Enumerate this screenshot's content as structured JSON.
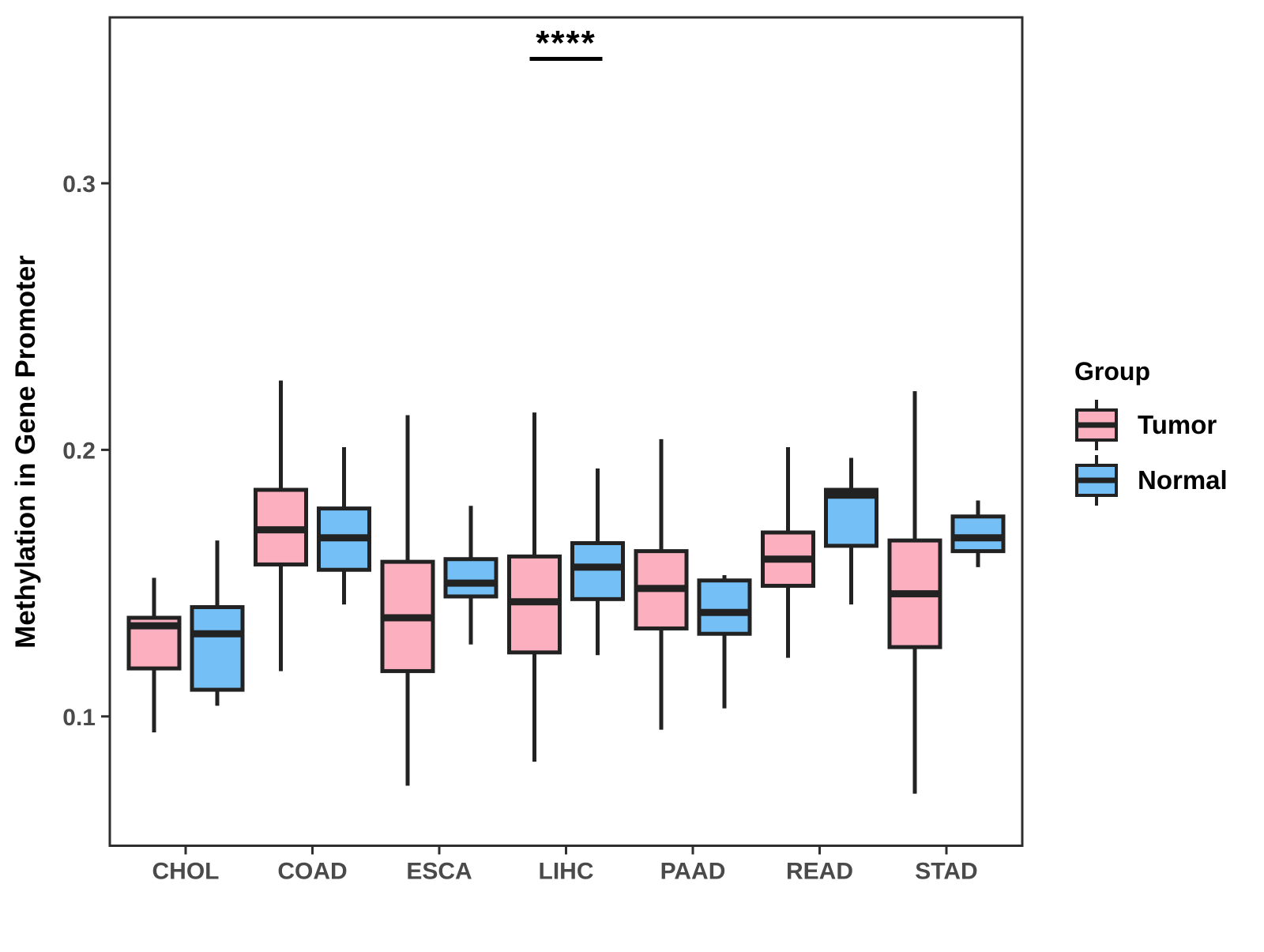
{
  "figure": {
    "y_axis": {
      "title": "Methylation in Gene Promoter",
      "tick_labels": [
        "0.1",
        "0.2",
        "0.3"
      ],
      "tick_values": [
        0.1,
        0.2,
        0.3
      ]
    },
    "x_axis": {
      "tick_labels": [
        "CHOL",
        "COAD",
        "ESCA",
        "LIHC",
        "PAAD",
        "READ",
        "STAD"
      ]
    },
    "legend": {
      "title": "Group",
      "entries": [
        {
          "label": "Tumor",
          "color": "#FBAFBF"
        },
        {
          "label": "Normal",
          "color": "#74C0F6"
        }
      ]
    },
    "significance": {
      "label": "****"
    }
  },
  "chart_data": {
    "type": "boxplot",
    "title": "",
    "xlabel": "",
    "ylabel": "Methylation in Gene Promoter",
    "categories": [
      "CHOL",
      "COAD",
      "ESCA",
      "LIHC",
      "PAAD",
      "READ",
      "STAD"
    ],
    "groups": [
      "Tumor",
      "Normal"
    ],
    "ylim": [
      0.052,
      0.362
    ],
    "yticks": [
      0.1,
      0.2,
      0.3
    ],
    "grid": false,
    "legend_position": "right",
    "annotation": {
      "text": "****",
      "x_category": "LIHC",
      "y_value": 0.352
    },
    "series": [
      {
        "name": "Tumor",
        "color": "#FBAFBF",
        "stats": [
          {
            "category": "CHOL",
            "min": 0.094,
            "q1": 0.118,
            "median": 0.134,
            "q3": 0.137,
            "max": 0.152
          },
          {
            "category": "COAD",
            "min": 0.117,
            "q1": 0.157,
            "median": 0.17,
            "q3": 0.185,
            "max": 0.226
          },
          {
            "category": "ESCA",
            "min": 0.074,
            "q1": 0.117,
            "median": 0.137,
            "q3": 0.158,
            "max": 0.213
          },
          {
            "category": "LIHC",
            "min": 0.083,
            "q1": 0.124,
            "median": 0.143,
            "q3": 0.16,
            "max": 0.214
          },
          {
            "category": "PAAD",
            "min": 0.095,
            "q1": 0.133,
            "median": 0.148,
            "q3": 0.162,
            "max": 0.204
          },
          {
            "category": "READ",
            "min": 0.122,
            "q1": 0.149,
            "median": 0.159,
            "q3": 0.169,
            "max": 0.201
          },
          {
            "category": "STAD",
            "min": 0.071,
            "q1": 0.126,
            "median": 0.146,
            "q3": 0.166,
            "max": 0.222
          }
        ]
      },
      {
        "name": "Normal",
        "color": "#74C0F6",
        "stats": [
          {
            "category": "CHOL",
            "min": 0.104,
            "q1": 0.11,
            "median": 0.131,
            "q3": 0.141,
            "max": 0.166
          },
          {
            "category": "COAD",
            "min": 0.142,
            "q1": 0.155,
            "median": 0.167,
            "q3": 0.178,
            "max": 0.201
          },
          {
            "category": "ESCA",
            "min": 0.127,
            "q1": 0.145,
            "median": 0.15,
            "q3": 0.159,
            "max": 0.179
          },
          {
            "category": "LIHC",
            "min": 0.123,
            "q1": 0.144,
            "median": 0.156,
            "q3": 0.165,
            "max": 0.193
          },
          {
            "category": "PAAD",
            "min": 0.103,
            "q1": 0.131,
            "median": 0.139,
            "q3": 0.151,
            "max": 0.153
          },
          {
            "category": "READ",
            "min": 0.142,
            "q1": 0.164,
            "median": 0.183,
            "q3": 0.185,
            "max": 0.197
          },
          {
            "category": "STAD",
            "min": 0.156,
            "q1": 0.162,
            "median": 0.167,
            "q3": 0.175,
            "max": 0.181
          }
        ]
      }
    ]
  }
}
